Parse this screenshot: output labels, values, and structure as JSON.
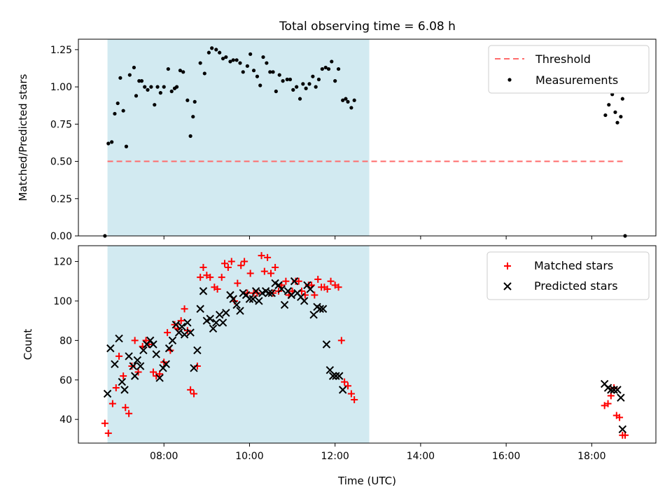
{
  "figure": {
    "title": "Total observing time = 6.08 h"
  },
  "chart_data": [
    {
      "type": "scatter",
      "panel": "top",
      "xlabel": "",
      "ylabel": "Matched/Predicted stars",
      "xlim_hours": [
        6.0,
        19.5
      ],
      "ylim": [
        0.0,
        1.32
      ],
      "yticks": [
        "0.00",
        "0.25",
        "0.50",
        "0.75",
        "1.00",
        "1.25"
      ],
      "grid": false,
      "legend_position": "upper right",
      "shaded_region_hours": [
        6.68,
        12.8
      ],
      "shade_color": "#add8e6",
      "threshold": {
        "name": "Threshold",
        "y": 0.5,
        "x_hours": [
          6.68,
          18.78
        ],
        "color": "#ff6b6b",
        "style": "dashed"
      },
      "series": [
        {
          "name": "Measurements",
          "color": "#000000",
          "marker": "dot",
          "points": [
            [
              6.62,
              0.0
            ],
            [
              6.7,
              0.62
            ],
            [
              6.78,
              0.63
            ],
            [
              6.85,
              0.82
            ],
            [
              6.92,
              0.89
            ],
            [
              6.98,
              1.06
            ],
            [
              7.05,
              0.84
            ],
            [
              7.12,
              0.6
            ],
            [
              7.2,
              1.08
            ],
            [
              7.3,
              1.13
            ],
            [
              7.35,
              0.94
            ],
            [
              7.42,
              1.04
            ],
            [
              7.48,
              1.04
            ],
            [
              7.55,
              1.0
            ],
            [
              7.62,
              0.98
            ],
            [
              7.7,
              1.0
            ],
            [
              7.78,
              0.88
            ],
            [
              7.85,
              1.0
            ],
            [
              7.92,
              0.96
            ],
            [
              8.0,
              1.0
            ],
            [
              8.1,
              1.12
            ],
            [
              8.18,
              0.97
            ],
            [
              8.25,
              0.99
            ],
            [
              8.3,
              1.0
            ],
            [
              8.38,
              1.11
            ],
            [
              8.45,
              1.1
            ],
            [
              8.55,
              0.91
            ],
            [
              8.62,
              0.67
            ],
            [
              8.68,
              0.8
            ],
            [
              8.72,
              0.9
            ],
            [
              8.85,
              1.16
            ],
            [
              8.95,
              1.09
            ],
            [
              9.05,
              1.23
            ],
            [
              9.12,
              1.26
            ],
            [
              9.22,
              1.25
            ],
            [
              9.3,
              1.23
            ],
            [
              9.38,
              1.19
            ],
            [
              9.45,
              1.2
            ],
            [
              9.55,
              1.17
            ],
            [
              9.62,
              1.18
            ],
            [
              9.7,
              1.18
            ],
            [
              9.78,
              1.16
            ],
            [
              9.85,
              1.1
            ],
            [
              9.95,
              1.14
            ],
            [
              10.02,
              1.22
            ],
            [
              10.1,
              1.11
            ],
            [
              10.18,
              1.07
            ],
            [
              10.25,
              1.01
            ],
            [
              10.32,
              1.2
            ],
            [
              10.4,
              1.16
            ],
            [
              10.48,
              1.1
            ],
            [
              10.55,
              1.1
            ],
            [
              10.62,
              0.97
            ],
            [
              10.7,
              1.08
            ],
            [
              10.78,
              1.04
            ],
            [
              10.88,
              1.05
            ],
            [
              10.95,
              1.05
            ],
            [
              11.02,
              0.98
            ],
            [
              11.1,
              1.0
            ],
            [
              11.18,
              0.92
            ],
            [
              11.25,
              1.02
            ],
            [
              11.32,
              0.99
            ],
            [
              11.4,
              1.02
            ],
            [
              11.48,
              1.07
            ],
            [
              11.55,
              1.0
            ],
            [
              11.62,
              1.05
            ],
            [
              11.7,
              1.12
            ],
            [
              11.78,
              1.13
            ],
            [
              11.85,
              1.12
            ],
            [
              11.92,
              1.17
            ],
            [
              12.0,
              1.04
            ],
            [
              12.08,
              1.12
            ],
            [
              12.18,
              0.91
            ],
            [
              12.25,
              0.92
            ],
            [
              12.3,
              0.9
            ],
            [
              12.38,
              0.86
            ],
            [
              12.45,
              0.91
            ],
            [
              18.32,
              0.81
            ],
            [
              18.4,
              0.88
            ],
            [
              18.48,
              0.95
            ],
            [
              18.55,
              0.83
            ],
            [
              18.6,
              0.76
            ],
            [
              18.68,
              0.8
            ],
            [
              18.72,
              0.92
            ],
            [
              18.78,
              0.0
            ]
          ]
        }
      ]
    },
    {
      "type": "scatter",
      "panel": "bottom",
      "xlabel": "Time (UTC)",
      "ylabel": "Count",
      "xlim_hours": [
        6.0,
        19.5
      ],
      "ylim": [
        28,
        128
      ],
      "yticks": [
        "40",
        "60",
        "80",
        "100",
        "120"
      ],
      "xticks": [
        "08:00",
        "10:00",
        "12:00",
        "14:00",
        "16:00",
        "18:00"
      ],
      "grid": false,
      "legend_position": "upper right",
      "shaded_region_hours": [
        6.68,
        12.8
      ],
      "series": [
        {
          "name": "Matched stars",
          "color": "#ff0000",
          "marker": "plus",
          "points": [
            [
              6.62,
              38
            ],
            [
              6.7,
              33
            ],
            [
              6.8,
              48
            ],
            [
              6.88,
              56
            ],
            [
              6.95,
              72
            ],
            [
              7.05,
              62
            ],
            [
              7.1,
              46
            ],
            [
              7.18,
              43
            ],
            [
              7.25,
              67
            ],
            [
              7.32,
              80
            ],
            [
              7.4,
              64
            ],
            [
              7.5,
              77
            ],
            [
              7.58,
              80
            ],
            [
              7.65,
              78
            ],
            [
              7.75,
              64
            ],
            [
              7.82,
              62
            ],
            [
              7.9,
              63
            ],
            [
              8.0,
              69
            ],
            [
              8.08,
              84
            ],
            [
              8.15,
              75
            ],
            [
              8.25,
              88
            ],
            [
              8.32,
              86
            ],
            [
              8.4,
              90
            ],
            [
              8.48,
              96
            ],
            [
              8.55,
              85
            ],
            [
              8.62,
              55
            ],
            [
              8.7,
              53
            ],
            [
              8.78,
              67
            ],
            [
              8.85,
              112
            ],
            [
              8.92,
              117
            ],
            [
              9.0,
              113
            ],
            [
              9.08,
              112
            ],
            [
              9.18,
              107
            ],
            [
              9.25,
              106
            ],
            [
              9.35,
              112
            ],
            [
              9.42,
              119
            ],
            [
              9.5,
              117
            ],
            [
              9.58,
              120
            ],
            [
              9.65,
              100
            ],
            [
              9.72,
              109
            ],
            [
              9.8,
              118
            ],
            [
              9.88,
              120
            ],
            [
              9.95,
              104
            ],
            [
              10.02,
              114
            ],
            [
              10.1,
              104
            ],
            [
              10.18,
              104
            ],
            [
              10.28,
              123
            ],
            [
              10.35,
              115
            ],
            [
              10.42,
              122
            ],
            [
              10.5,
              114
            ],
            [
              10.55,
              104
            ],
            [
              10.6,
              117
            ],
            [
              10.68,
              105
            ],
            [
              10.75,
              108
            ],
            [
              10.85,
              110
            ],
            [
              10.92,
              103
            ],
            [
              11.0,
              105
            ],
            [
              11.08,
              110
            ],
            [
              11.15,
              110
            ],
            [
              11.22,
              105
            ],
            [
              11.3,
              103
            ],
            [
              11.38,
              108
            ],
            [
              11.45,
              108
            ],
            [
              11.52,
              103
            ],
            [
              11.6,
              111
            ],
            [
              11.68,
              107
            ],
            [
              11.75,
              107
            ],
            [
              11.82,
              106
            ],
            [
              11.9,
              110
            ],
            [
              12.0,
              108
            ],
            [
              12.08,
              107
            ],
            [
              12.15,
              80
            ],
            [
              12.22,
              59
            ],
            [
              12.3,
              57
            ],
            [
              12.38,
              53
            ],
            [
              12.45,
              50
            ],
            [
              18.3,
              47
            ],
            [
              18.38,
              48
            ],
            [
              18.45,
              52
            ],
            [
              18.52,
              56
            ],
            [
              18.58,
              42
            ],
            [
              18.65,
              41
            ],
            [
              18.72,
              32
            ],
            [
              18.78,
              32
            ]
          ]
        },
        {
          "name": "Predicted stars",
          "color": "#000000",
          "marker": "x",
          "points": [
            [
              6.68,
              53
            ],
            [
              6.75,
              76
            ],
            [
              6.85,
              68
            ],
            [
              6.95,
              81
            ],
            [
              7.02,
              59
            ],
            [
              7.08,
              55
            ],
            [
              7.18,
              72
            ],
            [
              7.28,
              67
            ],
            [
              7.32,
              62
            ],
            [
              7.38,
              70
            ],
            [
              7.45,
              67
            ],
            [
              7.52,
              75
            ],
            [
              7.6,
              78
            ],
            [
              7.68,
              80
            ],
            [
              7.75,
              78
            ],
            [
              7.82,
              73
            ],
            [
              7.9,
              61
            ],
            [
              7.98,
              66
            ],
            [
              8.05,
              68
            ],
            [
              8.12,
              76
            ],
            [
              8.2,
              80
            ],
            [
              8.28,
              88
            ],
            [
              8.35,
              84
            ],
            [
              8.42,
              87
            ],
            [
              8.48,
              83
            ],
            [
              8.55,
              89
            ],
            [
              8.62,
              84
            ],
            [
              8.7,
              66
            ],
            [
              8.78,
              75
            ],
            [
              8.85,
              96
            ],
            [
              8.92,
              105
            ],
            [
              9.0,
              90
            ],
            [
              9.08,
              91
            ],
            [
              9.15,
              86
            ],
            [
              9.22,
              89
            ],
            [
              9.3,
              93
            ],
            [
              9.38,
              89
            ],
            [
              9.45,
              94
            ],
            [
              9.55,
              103
            ],
            [
              9.62,
              101
            ],
            [
              9.7,
              98
            ],
            [
              9.78,
              95
            ],
            [
              9.85,
              104
            ],
            [
              9.92,
              103
            ],
            [
              10.0,
              101
            ],
            [
              10.08,
              101
            ],
            [
              10.15,
              105
            ],
            [
              10.22,
              100
            ],
            [
              10.3,
              104
            ],
            [
              10.38,
              105
            ],
            [
              10.45,
              104
            ],
            [
              10.52,
              104
            ],
            [
              10.6,
              109
            ],
            [
              10.68,
              108
            ],
            [
              10.75,
              106
            ],
            [
              10.82,
              98
            ],
            [
              10.9,
              105
            ],
            [
              10.98,
              103
            ],
            [
              11.05,
              110
            ],
            [
              11.12,
              104
            ],
            [
              11.2,
              102
            ],
            [
              11.28,
              100
            ],
            [
              11.35,
              108
            ],
            [
              11.42,
              106
            ],
            [
              11.5,
              93
            ],
            [
              11.58,
              97
            ],
            [
              11.65,
              96
            ],
            [
              11.72,
              96
            ],
            [
              11.8,
              78
            ],
            [
              11.88,
              65
            ],
            [
              11.95,
              62
            ],
            [
              12.02,
              62
            ],
            [
              12.1,
              62
            ],
            [
              12.18,
              55
            ],
            [
              18.3,
              58
            ],
            [
              18.38,
              56
            ],
            [
              18.45,
              55
            ],
            [
              18.52,
              55
            ],
            [
              18.6,
              55
            ],
            [
              18.68,
              51
            ],
            [
              18.72,
              35
            ]
          ]
        }
      ]
    }
  ]
}
